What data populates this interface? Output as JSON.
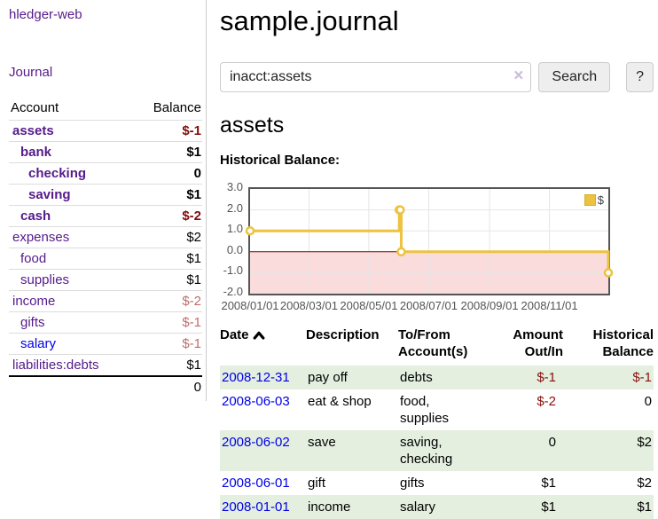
{
  "app": {
    "title": "hledger-web"
  },
  "sidebar": {
    "journal_label": "Journal",
    "accounts_table": {
      "headers": {
        "account": "Account",
        "balance": "Balance"
      },
      "rows": [
        {
          "name": "assets",
          "level": 1,
          "emphasized": true,
          "balance": "$-1",
          "tone": "neg-strong"
        },
        {
          "name": "bank",
          "level": 2,
          "emphasized": true,
          "balance": "$1"
        },
        {
          "name": "checking",
          "level": 3,
          "emphasized": true,
          "balance": "0"
        },
        {
          "name": "saving",
          "level": 3,
          "emphasized": true,
          "balance": "$1"
        },
        {
          "name": "cash",
          "level": 2,
          "emphasized": true,
          "balance": "$-2",
          "tone": "neg-strong"
        },
        {
          "name": "expenses",
          "level": 1,
          "emphasized": false,
          "balance": "$2"
        },
        {
          "name": "food",
          "level": 2,
          "emphasized": false,
          "balance": "$1"
        },
        {
          "name": "supplies",
          "level": 2,
          "emphasized": false,
          "balance": "$1"
        },
        {
          "name": "income",
          "level": 1,
          "emphasized": false,
          "balance": "$-2",
          "tone": "neg-muted"
        },
        {
          "name": "gifts",
          "level": 2,
          "emphasized": false,
          "balance": "$-1",
          "tone": "neg-muted"
        },
        {
          "name": "salary",
          "level": 2,
          "emphasized": false,
          "balance": "$-1",
          "tone": "neg-muted",
          "link": "blue"
        },
        {
          "name": "liabilities:debts",
          "level": 1,
          "emphasized": false,
          "balance": "$1"
        }
      ],
      "total": "0"
    }
  },
  "main": {
    "title": "sample.journal",
    "search": {
      "value": "inacct:assets",
      "clear_icon": "×",
      "button_label": "Search",
      "help_label": "?"
    },
    "account_heading": "assets"
  },
  "chart_data": {
    "type": "line",
    "step": true,
    "title": "Historical Balance:",
    "series": [
      {
        "name": "$",
        "color": "#edc240",
        "points": [
          [
            "2008/01/01",
            1.0
          ],
          [
            "2008/06/01",
            2.0
          ],
          [
            "2008/06/02",
            2.0
          ],
          [
            "2008/06/03",
            0.0
          ],
          [
            "2008/12/31",
            -1.0
          ]
        ]
      }
    ],
    "xlim": [
      "2008/01/01",
      "2008/12/31"
    ],
    "ylim": [
      -2.0,
      3.0
    ],
    "y_tick_labels": [
      "3.0",
      "2.0",
      "1.0",
      "0.0",
      "-1.0",
      "-2.0"
    ],
    "x_ticks": [
      "2008/01/01",
      "2008/03/01",
      "2008/05/01",
      "2008/07/01",
      "2008/09/01",
      "2008/11/01"
    ],
    "legend": {
      "label": "$",
      "position": "top-right"
    },
    "grid": true,
    "negative_region_color": "#fadcdc",
    "zero_line_color": "#8b0000"
  },
  "transactions": {
    "headers": {
      "date": "Date",
      "description": "Description",
      "accounts": "To/From Account(s)",
      "amount": "Amount Out/In",
      "balance": "Historical Balance"
    },
    "rows": [
      {
        "date": "2008-12-31",
        "description": "pay off",
        "accounts": "debts",
        "amount": "$-1",
        "balance": "$-1"
      },
      {
        "date": "2008-06-03",
        "description": "eat & shop",
        "accounts": "food, supplies",
        "amount": "$-2",
        "balance": "0"
      },
      {
        "date": "2008-06-02",
        "description": "save",
        "accounts": "saving, checking",
        "amount": "0",
        "balance": "$2"
      },
      {
        "date": "2008-06-01",
        "description": "gift",
        "accounts": "gifts",
        "amount": "$1",
        "balance": "$2"
      },
      {
        "date": "2008-01-01",
        "description": "income",
        "accounts": "salary",
        "amount": "$1",
        "balance": "$1"
      }
    ]
  }
}
